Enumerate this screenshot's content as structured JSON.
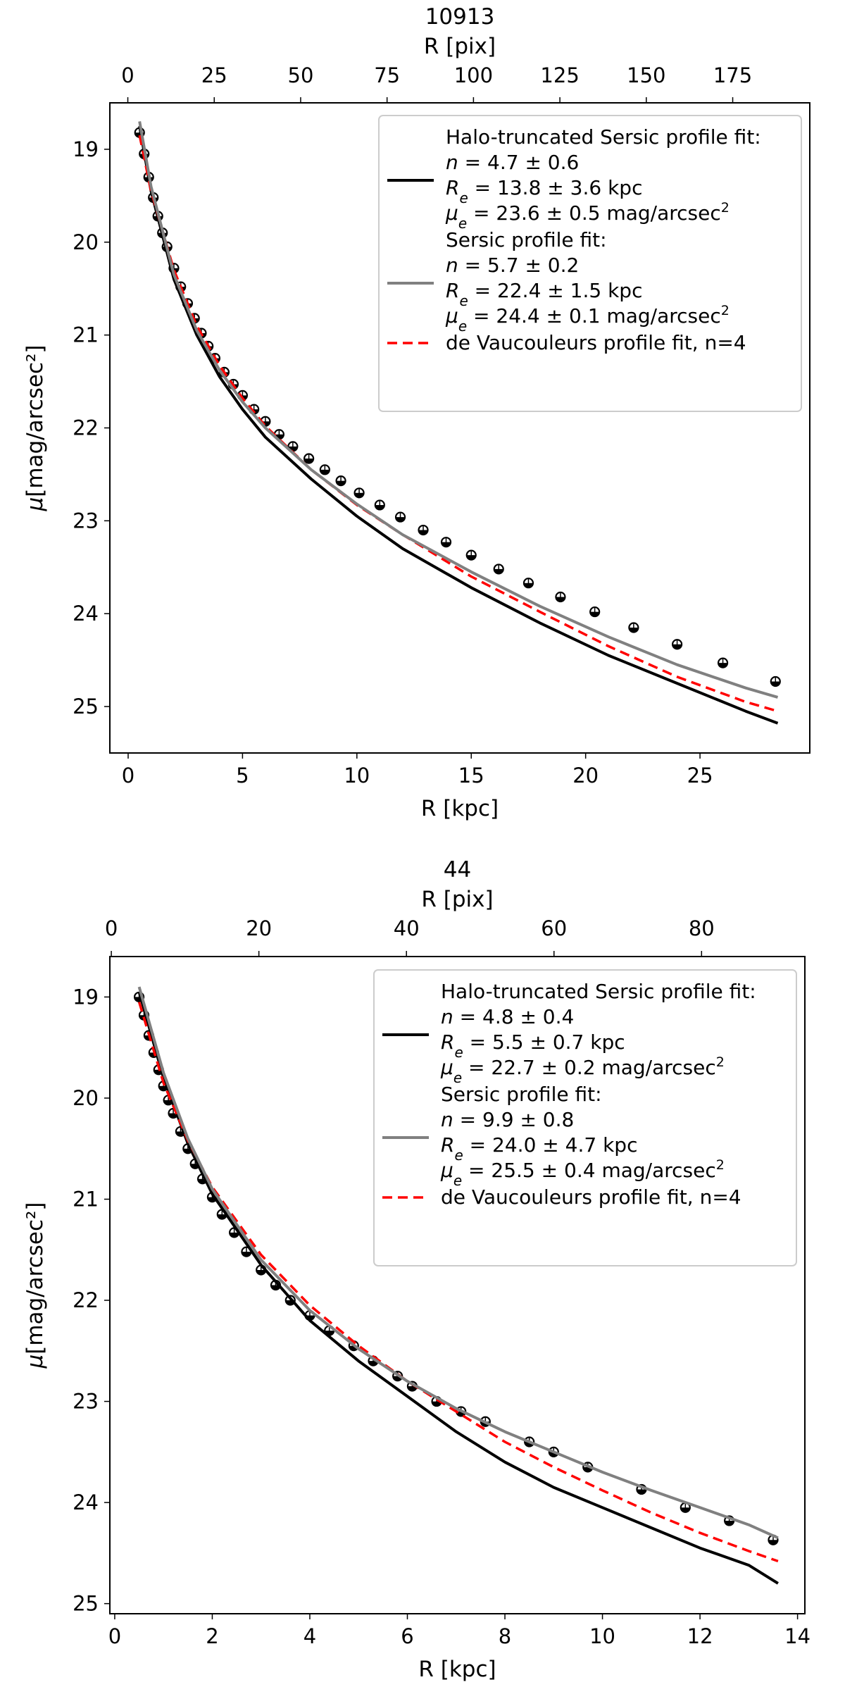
{
  "chart_data": [
    {
      "type": "line",
      "title": "10913",
      "xlabel": "R [kpc]",
      "x2label": "R [pix]",
      "ylabel": "μ[mag/arcsec²]",
      "xlim": [
        -0.8,
        29.8
      ],
      "ylim": [
        25.5,
        18.5
      ],
      "x2lim": [
        -5.2,
        197.3
      ],
      "xticks": [
        0,
        5,
        10,
        15,
        20,
        25
      ],
      "x2ticks": [
        0,
        25,
        50,
        75,
        100,
        125,
        150,
        175
      ],
      "yticks": [
        19,
        20,
        21,
        22,
        23,
        24,
        25
      ],
      "legend_position": "top-right",
      "legend": [
        {
          "kind": "black",
          "lines": [
            "Halo-truncated Sersic profile fit:",
            "n = 4.7 ± 0.6",
            "Re = 13.8 ± 3.6 kpc",
            "μe = 23.6 ± 0.5 mag/arcsec²"
          ]
        },
        {
          "kind": "gray",
          "lines": [
            "Sersic profile fit:",
            "n = 5.7 ± 0.2",
            "Re = 22.4 ± 1.5 kpc",
            "μe = 24.4 ± 0.1 mag/arcsec²"
          ]
        },
        {
          "kind": "red",
          "lines": [
            "de Vaucouleurs profile fit, n=4"
          ]
        }
      ],
      "series": [
        {
          "name": "Halo-truncated Sersic profile fit",
          "color": "#000000",
          "x": [
            0.5,
            1,
            2,
            3,
            4,
            5,
            6,
            8,
            10,
            12,
            15,
            18,
            21,
            24,
            27,
            28.4
          ],
          "y": [
            18.75,
            19.45,
            20.4,
            21.0,
            21.45,
            21.8,
            22.1,
            22.55,
            22.95,
            23.3,
            23.72,
            24.1,
            24.45,
            24.75,
            25.05,
            25.18
          ]
        },
        {
          "name": "Sersic profile fit",
          "color": "#808080",
          "x": [
            0.5,
            1,
            2,
            3,
            4,
            5,
            6,
            8,
            10,
            12,
            15,
            18,
            21,
            24,
            27,
            28.4
          ],
          "y": [
            18.7,
            19.4,
            20.35,
            20.95,
            21.38,
            21.72,
            22.0,
            22.45,
            22.82,
            23.15,
            23.55,
            23.92,
            24.25,
            24.55,
            24.8,
            24.9
          ]
        },
        {
          "name": "de Vaucouleurs profile fit, n=4",
          "color": "#ff0000",
          "x": [
            0.5,
            1,
            2,
            3,
            4,
            5,
            6,
            8,
            10,
            12,
            15,
            18,
            21,
            24,
            27,
            28.4
          ],
          "y": [
            18.85,
            19.45,
            20.3,
            20.9,
            21.33,
            21.68,
            21.98,
            22.45,
            22.83,
            23.15,
            23.6,
            23.98,
            24.35,
            24.68,
            24.95,
            25.05
          ]
        },
        {
          "name": "measured profile",
          "kind": "points",
          "color": "#000000",
          "x": [
            0.5,
            0.7,
            0.9,
            1.1,
            1.3,
            1.5,
            1.7,
            2.0,
            2.3,
            2.6,
            2.9,
            3.2,
            3.5,
            3.8,
            4.2,
            4.6,
            5.0,
            5.5,
            6.0,
            6.6,
            7.2,
            7.9,
            8.6,
            9.3,
            10.1,
            11.0,
            11.9,
            12.9,
            13.9,
            15.0,
            16.2,
            17.5,
            18.9,
            20.4,
            22.1,
            24.0,
            26.0,
            28.3
          ],
          "y": [
            18.82,
            19.05,
            19.3,
            19.52,
            19.72,
            19.9,
            20.05,
            20.28,
            20.48,
            20.66,
            20.82,
            20.98,
            21.12,
            21.25,
            21.4,
            21.53,
            21.65,
            21.8,
            21.93,
            22.07,
            22.2,
            22.33,
            22.45,
            22.57,
            22.7,
            22.83,
            22.96,
            23.1,
            23.23,
            23.37,
            23.52,
            23.67,
            23.82,
            23.98,
            24.15,
            24.33,
            24.53,
            24.73
          ]
        }
      ]
    },
    {
      "type": "line",
      "title": "44",
      "xlabel": "R [kpc]",
      "x2label": "R [pix]",
      "ylabel": "μ[mag/arcsec²]",
      "xlim": [
        -0.1,
        14.15
      ],
      "ylim": [
        25.1,
        18.6
      ],
      "x2lim": [
        -0.2,
        94.0
      ],
      "xticks": [
        0,
        2,
        4,
        6,
        8,
        10,
        12,
        14
      ],
      "x2ticks": [
        0,
        20,
        40,
        60,
        80
      ],
      "yticks": [
        19,
        20,
        21,
        22,
        23,
        24,
        25
      ],
      "legend_position": "top-right",
      "legend": [
        {
          "kind": "black",
          "lines": [
            "Halo-truncated Sersic profile fit:",
            "n = 4.8 ± 0.4",
            "Re = 5.5 ± 0.7 kpc",
            "μe = 22.7 ± 0.2 mag/arcsec²"
          ]
        },
        {
          "kind": "gray",
          "lines": [
            "Sersic profile fit:",
            "n = 9.9 ± 0.8",
            "Re = 24.0 ± 4.7 kpc",
            "μe = 25.5 ± 0.4 mag/arcsec²"
          ]
        },
        {
          "kind": "red",
          "lines": [
            "de Vaucouleurs profile fit, n=4"
          ]
        }
      ],
      "series": [
        {
          "name": "Halo-truncated Sersic profile fit",
          "color": "#000000",
          "x": [
            0.5,
            1,
            1.5,
            2,
            3,
            4,
            5,
            6,
            7,
            8,
            9,
            10,
            11,
            12,
            13,
            13.6
          ],
          "y": [
            18.95,
            19.8,
            20.45,
            20.95,
            21.65,
            22.2,
            22.6,
            22.95,
            23.3,
            23.6,
            23.85,
            24.05,
            24.25,
            24.45,
            24.62,
            24.8
          ]
        },
        {
          "name": "Sersic profile fit",
          "color": "#808080",
          "x": [
            0.5,
            1,
            1.5,
            2,
            3,
            4,
            5,
            6,
            7,
            8,
            9,
            10,
            11,
            12,
            13,
            13.6
          ],
          "y": [
            18.9,
            19.75,
            20.4,
            20.9,
            21.6,
            22.1,
            22.48,
            22.8,
            23.07,
            23.3,
            23.5,
            23.7,
            23.88,
            24.05,
            24.22,
            24.35
          ]
        },
        {
          "name": "de Vaucouleurs profile fit, n=4",
          "color": "#ff0000",
          "x": [
            0.5,
            1,
            1.5,
            2,
            3,
            4,
            5,
            6,
            7,
            8,
            9,
            10,
            11,
            12,
            13,
            13.6
          ],
          "y": [
            19.05,
            19.85,
            20.42,
            20.88,
            21.55,
            22.05,
            22.45,
            22.8,
            23.1,
            23.4,
            23.65,
            23.88,
            24.1,
            24.3,
            24.48,
            24.58
          ]
        },
        {
          "name": "measured profile",
          "kind": "points",
          "color": "#000000",
          "x": [
            0.5,
            0.6,
            0.7,
            0.8,
            0.9,
            1.0,
            1.1,
            1.2,
            1.35,
            1.5,
            1.65,
            1.8,
            2.0,
            2.2,
            2.45,
            2.7,
            3.0,
            3.3,
            3.6,
            4.0,
            4.4,
            4.9,
            5.3,
            5.8,
            6.1,
            6.6,
            7.1,
            7.6,
            8.5,
            9.0,
            9.7,
            10.8,
            11.7,
            12.6,
            13.5
          ],
          "y": [
            19.0,
            19.18,
            19.38,
            19.55,
            19.72,
            19.88,
            20.02,
            20.15,
            20.33,
            20.5,
            20.65,
            20.8,
            20.98,
            21.15,
            21.33,
            21.52,
            21.7,
            21.85,
            22.0,
            22.15,
            22.3,
            22.45,
            22.6,
            22.75,
            22.85,
            23.0,
            23.1,
            23.2,
            23.4,
            23.5,
            23.65,
            23.87,
            24.05,
            24.18,
            24.37
          ]
        }
      ]
    }
  ]
}
